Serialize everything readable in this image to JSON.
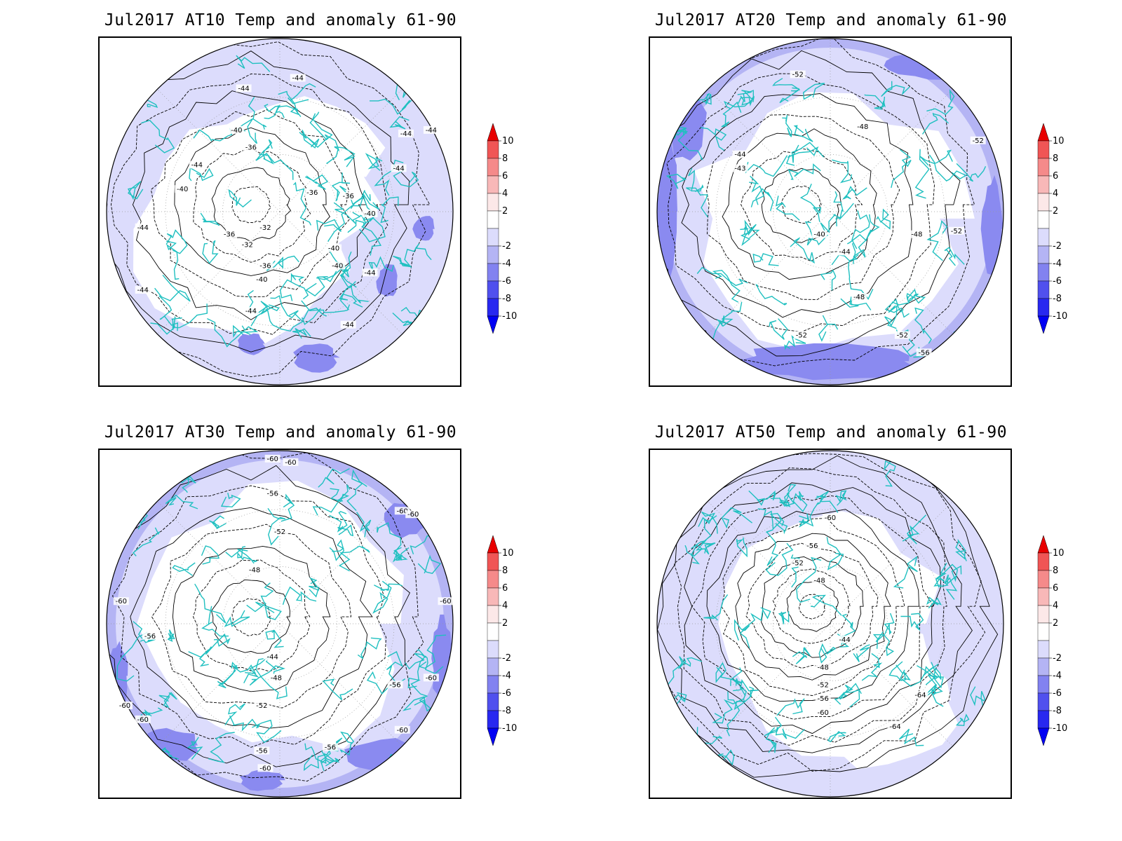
{
  "panels": [
    {
      "id": "at10",
      "title": "Jul2017 AT10 Temp and anomaly 61-90",
      "contour_labels": [
        "-44",
        "-44",
        "-44",
        "-44",
        "-40",
        "-36",
        "-44",
        "-40",
        "-36",
        "-36",
        "-32",
        "-36",
        "-32",
        "-40",
        "-44",
        "-40",
        "-44",
        "-36",
        "-40",
        "-40",
        "-44",
        "-44",
        "-44",
        "-44"
      ],
      "anomaly_fill": "light-blue"
    },
    {
      "id": "at20",
      "title": "Jul2017 AT20 Temp and anomaly 61-90",
      "contour_labels": [
        "-52",
        "-48",
        "-52",
        "-44",
        "-43",
        "-40",
        "-44",
        "-48",
        "-52",
        "-48",
        "-52",
        "-52",
        "-56"
      ],
      "anomaly_fill": "light-blue"
    },
    {
      "id": "at30",
      "title": "Jul2017 AT30 Temp and anomaly 61-90",
      "contour_labels": [
        "-60",
        "-60",
        "-56",
        "-60",
        "-60",
        "-52",
        "-48",
        "-60",
        "-60",
        "-56",
        "-44",
        "-48",
        "-52",
        "-56",
        "-60",
        "-60",
        "-60",
        "-56",
        "-56",
        "-60",
        "-60"
      ],
      "anomaly_fill": "light-blue"
    },
    {
      "id": "at50",
      "title": "Jul2017 AT50 Temp and anomaly 61-90",
      "contour_labels": [
        "-60",
        "-56",
        "-52",
        "-48",
        "-44",
        "-48",
        "-52",
        "-56",
        "-60",
        "-64",
        "-64"
      ],
      "anomaly_fill": "light-blue"
    }
  ],
  "colorbar": {
    "labels": [
      "10",
      "8",
      "6",
      "4",
      "2",
      "-2",
      "-4",
      "-6",
      "-8",
      "-10"
    ],
    "colors": [
      "#e80000",
      "#f05555",
      "#f58a8a",
      "#f8b8b8",
      "#fce8e8",
      "#ffffff",
      "#dcdcfc",
      "#b4b4f4",
      "#8282f0",
      "#5050ee",
      "#2828f0",
      "#0000f4"
    ]
  },
  "colors": {
    "anomaly_light": "#dcdcfc",
    "anomaly_mid": "#b4b4f4",
    "anomaly_strong": "#8a8af0",
    "coastline": "#20c0c0",
    "contour": "#000000"
  }
}
